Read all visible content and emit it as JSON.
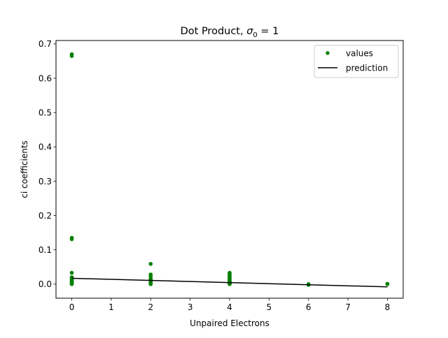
{
  "chart_data": {
    "type": "scatter",
    "title_main": "Dot Product, ",
    "title_sigma": "σ",
    "title_sub": "0",
    "title_rest": " = 1",
    "xlabel": "Unpaired Electrons",
    "ylabel": "ci coefficients",
    "xlim": [
      -0.4,
      8.4
    ],
    "ylim": [
      -0.041,
      0.71
    ],
    "xticks": [
      0,
      1,
      2,
      3,
      4,
      5,
      6,
      7,
      8
    ],
    "yticks": [
      0.0,
      0.1,
      0.2,
      0.3,
      0.4,
      0.5,
      0.6,
      0.7
    ],
    "ytick_labels": [
      "0.0",
      "0.1",
      "0.2",
      "0.3",
      "0.4",
      "0.5",
      "0.6",
      "0.7"
    ],
    "legend_position": "top-right",
    "grid": false,
    "series": [
      {
        "name": "values",
        "kind": "points",
        "color": "#008000",
        "points": [
          [
            0,
            0.67
          ],
          [
            0,
            0.665
          ],
          [
            0,
            0.135
          ],
          [
            0,
            0.131
          ],
          [
            0,
            0.033
          ],
          [
            0,
            0.02
          ],
          [
            0,
            0.017
          ],
          [
            0,
            0.014
          ],
          [
            0,
            0.012
          ],
          [
            0,
            0.01
          ],
          [
            0,
            0.008
          ],
          [
            0,
            0.006
          ],
          [
            0,
            0.004
          ],
          [
            0,
            0.003
          ],
          [
            0,
            0.002
          ],
          [
            0,
            0.001
          ],
          [
            0,
            0.0
          ],
          [
            2,
            0.059
          ],
          [
            2,
            0.028
          ],
          [
            2,
            0.024
          ],
          [
            2,
            0.018
          ],
          [
            2,
            0.015
          ],
          [
            2,
            0.012
          ],
          [
            2,
            0.01
          ],
          [
            2,
            0.008
          ],
          [
            2,
            0.006
          ],
          [
            2,
            0.005
          ],
          [
            2,
            0.004
          ],
          [
            2,
            0.003
          ],
          [
            2,
            0.002
          ],
          [
            2,
            0.001
          ],
          [
            2,
            0.0
          ],
          [
            4,
            0.033
          ],
          [
            4,
            0.03
          ],
          [
            4,
            0.027
          ],
          [
            4,
            0.024
          ],
          [
            4,
            0.021
          ],
          [
            4,
            0.018
          ],
          [
            4,
            0.016
          ],
          [
            4,
            0.014
          ],
          [
            4,
            0.012
          ],
          [
            4,
            0.01
          ],
          [
            4,
            0.008
          ],
          [
            4,
            0.006
          ],
          [
            4,
            0.005
          ],
          [
            4,
            0.004
          ],
          [
            4,
            0.003
          ],
          [
            4,
            0.002
          ],
          [
            4,
            0.001
          ],
          [
            4,
            0.0
          ],
          [
            6,
            0.0
          ],
          [
            6,
            -0.001
          ],
          [
            6,
            -0.002
          ],
          [
            8,
            0.001
          ],
          [
            8,
            0.0
          ]
        ]
      },
      {
        "name": "prediction",
        "kind": "line",
        "color": "#000000",
        "x": [
          0,
          8
        ],
        "y": [
          0.017,
          -0.008
        ]
      }
    ]
  }
}
